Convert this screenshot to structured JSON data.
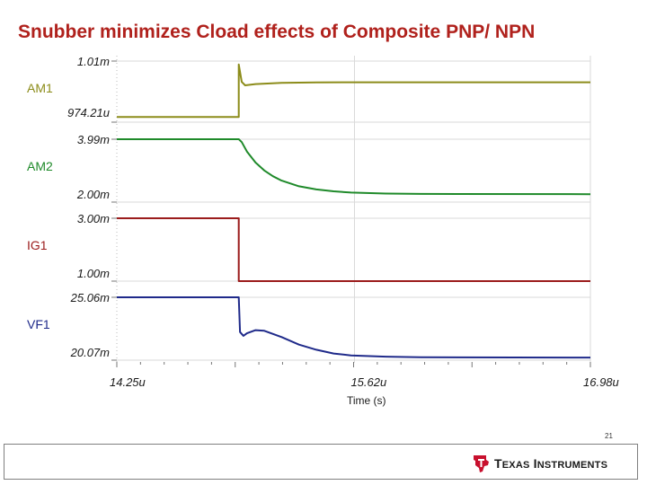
{
  "page": {
    "title": "Snubber minimizes Cload effects of Composite PNP/ NPN",
    "page_number": "21"
  },
  "logo": {
    "text_big_1": "T",
    "text_small_1": "EXAS",
    "text_big_2": "I",
    "text_small_2": "NSTRUMENTS"
  },
  "chart_data": {
    "type": "line",
    "xlabel": "Time (s)",
    "x_ticks": [
      "14.25u",
      "15.62u",
      "16.98u"
    ],
    "xlim": [
      14.25,
      16.98
    ],
    "x_unit": "us",
    "colors": {
      "AM1": "#8c8c1a",
      "AM2": "#1f8a2a",
      "IG1": "#9b1c1c",
      "VF1": "#1f2a8a",
      "grid": "#d9d9d9",
      "axis": "#555555"
    },
    "series": [
      {
        "name": "AM1",
        "ylim": [
          0.97421,
          1.01
        ],
        "top_label": "1.01m",
        "bottom_label": "974.21u",
        "points": [
          [
            14.25,
            0.9772
          ],
          [
            14.953,
            0.9772
          ],
          [
            14.953,
            1.008
          ],
          [
            14.97,
            0.9978
          ],
          [
            14.99,
            0.9958
          ],
          [
            15.05,
            0.9965
          ],
          [
            15.2,
            0.9972
          ],
          [
            15.4,
            0.9975
          ],
          [
            15.8,
            0.9976
          ],
          [
            16.98,
            0.9976
          ]
        ]
      },
      {
        "name": "AM2",
        "ylim": [
          2.0,
          3.99
        ],
        "top_label": "3.99m",
        "bottom_label": "2.00m",
        "points": [
          [
            14.25,
            3.99
          ],
          [
            14.953,
            3.99
          ],
          [
            14.97,
            3.9
          ],
          [
            15.0,
            3.6
          ],
          [
            15.05,
            3.25
          ],
          [
            15.1,
            3.0
          ],
          [
            15.15,
            2.82
          ],
          [
            15.2,
            2.68
          ],
          [
            15.3,
            2.5
          ],
          [
            15.4,
            2.4
          ],
          [
            15.5,
            2.34
          ],
          [
            15.6,
            2.3
          ],
          [
            15.8,
            2.27
          ],
          [
            16.0,
            2.26
          ],
          [
            16.98,
            2.25
          ]
        ]
      },
      {
        "name": "IG1",
        "ylim": [
          1.0,
          3.0
        ],
        "top_label": "3.00m",
        "bottom_label": "1.00m",
        "points": [
          [
            14.25,
            3.0
          ],
          [
            14.953,
            3.0
          ],
          [
            14.953,
            1.0
          ],
          [
            16.98,
            1.0
          ]
        ]
      },
      {
        "name": "VF1",
        "ylim": [
          20.07,
          25.06
        ],
        "top_label": "25.06m",
        "bottom_label": "20.07m",
        "points": [
          [
            14.25,
            25.06
          ],
          [
            14.953,
            25.06
          ],
          [
            14.96,
            22.3
          ],
          [
            14.98,
            22.0
          ],
          [
            15.0,
            22.2
          ],
          [
            15.05,
            22.45
          ],
          [
            15.1,
            22.4
          ],
          [
            15.2,
            21.9
          ],
          [
            15.3,
            21.3
          ],
          [
            15.4,
            20.9
          ],
          [
            15.5,
            20.6
          ],
          [
            15.6,
            20.45
          ],
          [
            15.8,
            20.35
          ],
          [
            16.0,
            20.3
          ],
          [
            16.98,
            20.28
          ]
        ]
      }
    ]
  }
}
